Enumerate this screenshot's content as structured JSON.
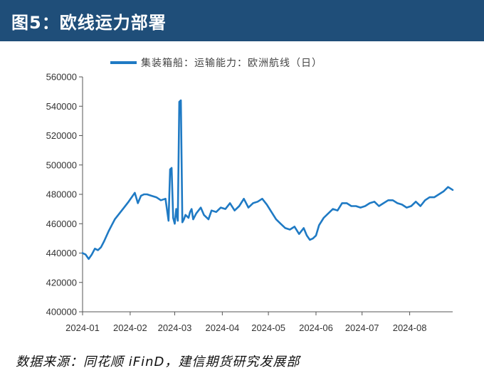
{
  "header": {
    "title": "图5：欧线运力部署"
  },
  "footer": {
    "source": "数据来源：同花顺 iFinD，建信期货研究发展部"
  },
  "colors": {
    "header_bg": "#1f4e79",
    "series": "#1f7ac4",
    "axis": "#555555"
  },
  "chart_data": {
    "type": "line",
    "title": "",
    "xlabel": "",
    "ylabel": "",
    "legend_position": "top-center",
    "grid": false,
    "ylim": [
      400000,
      560000
    ],
    "y_ticks": [
      400000,
      420000,
      440000,
      460000,
      480000,
      500000,
      520000,
      540000,
      560000
    ],
    "x_tick_labels": [
      "2024-01",
      "2024-02",
      "2024-03",
      "2024-04",
      "2024-05",
      "2024-06",
      "2024-07",
      "2024-08"
    ],
    "series": [
      {
        "name": "集装箱船：运输能力：欧洲航线（日）",
        "x": [
          "2024-01-01",
          "2024-01-03",
          "2024-01-05",
          "2024-01-07",
          "2024-01-09",
          "2024-01-11",
          "2024-01-13",
          "2024-01-15",
          "2024-01-18",
          "2024-01-20",
          "2024-01-22",
          "2024-01-25",
          "2024-01-28",
          "2024-01-31",
          "2024-02-02",
          "2024-02-04",
          "2024-02-06",
          "2024-02-08",
          "2024-02-10",
          "2024-02-12",
          "2024-02-15",
          "2024-02-18",
          "2024-02-21",
          "2024-02-24",
          "2024-02-26",
          "2024-02-27",
          "2024-02-28",
          "2024-02-29",
          "2024-03-01",
          "2024-03-02",
          "2024-03-03",
          "2024-03-04",
          "2024-03-05",
          "2024-03-06",
          "2024-03-07",
          "2024-03-08",
          "2024-03-09",
          "2024-03-10",
          "2024-03-11",
          "2024-03-12",
          "2024-03-13",
          "2024-03-15",
          "2024-03-18",
          "2024-03-20",
          "2024-03-23",
          "2024-03-25",
          "2024-03-28",
          "2024-03-31",
          "2024-04-03",
          "2024-04-06",
          "2024-04-09",
          "2024-04-12",
          "2024-04-15",
          "2024-04-18",
          "2024-04-21",
          "2024-04-24",
          "2024-04-27",
          "2024-04-30",
          "2024-05-03",
          "2024-05-06",
          "2024-05-09",
          "2024-05-12",
          "2024-05-15",
          "2024-05-18",
          "2024-05-21",
          "2024-05-24",
          "2024-05-26",
          "2024-05-28",
          "2024-05-30",
          "2024-06-01",
          "2024-06-03",
          "2024-06-06",
          "2024-06-09",
          "2024-06-12",
          "2024-06-15",
          "2024-06-18",
          "2024-06-21",
          "2024-06-24",
          "2024-06-27",
          "2024-06-30",
          "2024-07-03",
          "2024-07-06",
          "2024-07-09",
          "2024-07-12",
          "2024-07-15",
          "2024-07-18",
          "2024-07-21",
          "2024-07-24",
          "2024-07-27",
          "2024-07-30",
          "2024-08-02",
          "2024-08-05",
          "2024-08-08",
          "2024-08-11",
          "2024-08-14",
          "2024-08-17",
          "2024-08-20",
          "2024-08-23",
          "2024-08-26",
          "2024-08-29"
        ],
        "y": [
          440000,
          439000,
          436000,
          439000,
          443000,
          442000,
          444000,
          448000,
          455000,
          459000,
          463000,
          467000,
          471000,
          475000,
          478000,
          481000,
          474000,
          479000,
          480000,
          480000,
          479000,
          478000,
          476000,
          477000,
          462000,
          497000,
          498000,
          464000,
          460000,
          470000,
          462000,
          543000,
          544000,
          461000,
          463000,
          466000,
          465000,
          464000,
          468000,
          470000,
          463000,
          467000,
          471000,
          466000,
          463000,
          469000,
          468000,
          471000,
          470000,
          474000,
          469000,
          472000,
          477000,
          471000,
          474000,
          475000,
          477000,
          473000,
          468000,
          463000,
          460000,
          457000,
          456000,
          458000,
          453000,
          457000,
          452000,
          449000,
          450000,
          452000,
          459000,
          464000,
          467000,
          470000,
          469000,
          474000,
          474000,
          472000,
          472000,
          471000,
          472000,
          474000,
          475000,
          472000,
          474000,
          476000,
          476000,
          474000,
          473000,
          471000,
          472000,
          475000,
          472000,
          476000,
          478000,
          478000,
          480000,
          482000,
          485000,
          483000
        ]
      }
    ]
  }
}
